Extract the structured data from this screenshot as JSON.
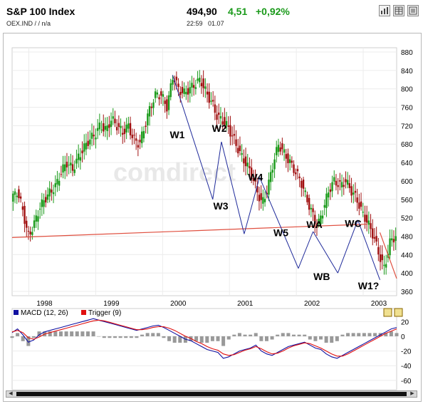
{
  "header": {
    "title": "S&P 100 Index",
    "subtitle": "OEX.IND  /    /  n/a",
    "price": "494,90",
    "change": "4,51",
    "change_pct": "+0,92%",
    "time": "22:59",
    "date": "01.07"
  },
  "toolbar": {
    "icons": [
      "bar-chart-icon",
      "table-icon",
      "news-icon",
      "close-icon"
    ]
  },
  "watermark": "comdirect",
  "colors": {
    "up": "#1a9a1a",
    "down": "#a01010",
    "wave_line": "#1f2a9a",
    "trend_line": "#e05040",
    "macd": "#1010a0",
    "trigger": "#e01010",
    "histogram": "#999999"
  },
  "chart_data": [
    {
      "type": "candlestick",
      "y_ticks": [
        "880",
        "840",
        "800",
        "760",
        "720",
        "680",
        "640",
        "600",
        "560",
        "520",
        "480",
        "440",
        "400",
        "360"
      ],
      "ylim": [
        360,
        880
      ],
      "x_ticks": [
        "1998",
        "1999",
        "2000",
        "2001",
        "2002",
        "2003"
      ],
      "xlim": [
        1997.75,
        2003.5
      ],
      "price_path": [
        [
          1997.75,
          555
        ],
        [
          1997.83,
          580
        ],
        [
          1997.92,
          540
        ],
        [
          1998.0,
          480
        ],
        [
          1998.08,
          500
        ],
        [
          1998.17,
          540
        ],
        [
          1998.25,
          560
        ],
        [
          1998.33,
          575
        ],
        [
          1998.42,
          590
        ],
        [
          1998.5,
          620
        ],
        [
          1998.58,
          640
        ],
        [
          1998.67,
          625
        ],
        [
          1998.75,
          650
        ],
        [
          1998.83,
          670
        ],
        [
          1998.92,
          690
        ],
        [
          1999.0,
          700
        ],
        [
          1999.08,
          720
        ],
        [
          1999.17,
          710
        ],
        [
          1999.25,
          735
        ],
        [
          1999.33,
          720
        ],
        [
          1999.42,
          705
        ],
        [
          1999.5,
          720
        ],
        [
          1999.58,
          690
        ],
        [
          1999.67,
          680
        ],
        [
          1999.75,
          720
        ],
        [
          1999.83,
          760
        ],
        [
          1999.92,
          790
        ],
        [
          2000.0,
          785
        ],
        [
          2000.08,
          760
        ],
        [
          2000.17,
          830
        ],
        [
          2000.25,
          800
        ],
        [
          2000.33,
          790
        ],
        [
          2000.42,
          800
        ],
        [
          2000.5,
          810
        ],
        [
          2000.58,
          820
        ],
        [
          2000.67,
          790
        ],
        [
          2000.75,
          770
        ],
        [
          2000.83,
          740
        ],
        [
          2000.92,
          730
        ],
        [
          2001.0,
          715
        ],
        [
          2001.08,
          690
        ],
        [
          2001.17,
          660
        ],
        [
          2001.25,
          640
        ],
        [
          2001.33,
          620
        ],
        [
          2001.42,
          580
        ],
        [
          2001.5,
          550
        ],
        [
          2001.58,
          580
        ],
        [
          2001.67,
          640
        ],
        [
          2001.75,
          680
        ],
        [
          2001.83,
          660
        ],
        [
          2001.92,
          640
        ],
        [
          2002.0,
          620
        ],
        [
          2002.08,
          600
        ],
        [
          2002.17,
          560
        ],
        [
          2002.25,
          530
        ],
        [
          2002.33,
          500
        ],
        [
          2002.42,
          540
        ],
        [
          2002.5,
          580
        ],
        [
          2002.58,
          600
        ],
        [
          2002.67,
          590
        ],
        [
          2002.75,
          600
        ],
        [
          2002.83,
          580
        ],
        [
          2002.92,
          560
        ],
        [
          2003.0,
          530
        ],
        [
          2003.08,
          510
        ],
        [
          2003.17,
          480
        ],
        [
          2003.25,
          440
        ],
        [
          2003.33,
          410
        ],
        [
          2003.42,
          470
        ],
        [
          2003.5,
          480
        ]
      ],
      "annotations": [
        {
          "text": "W1",
          "x": 2000.22,
          "y": 693
        },
        {
          "text": "W2",
          "x": 2000.85,
          "y": 707
        },
        {
          "text": "W3",
          "x": 2000.87,
          "y": 538
        },
        {
          "text": "W4",
          "x": 2001.39,
          "y": 601
        },
        {
          "text": "W5",
          "x": 2001.77,
          "y": 480
        },
        {
          "text": "WA",
          "x": 2002.27,
          "y": 498
        },
        {
          "text": "WB",
          "x": 2002.38,
          "y": 385
        },
        {
          "text": "WC",
          "x": 2002.85,
          "y": 500
        },
        {
          "text": "W1?",
          "x": 2003.08,
          "y": 365
        }
      ],
      "wave_lines": [
        [
          [
            2000.15,
            830
          ],
          [
            2000.75,
            560
          ]
        ],
        [
          [
            2000.75,
            560
          ],
          [
            2000.88,
            685
          ]
        ],
        [
          [
            2000.88,
            685
          ],
          [
            2001.22,
            485
          ]
        ],
        [
          [
            2001.22,
            485
          ],
          [
            2001.45,
            608
          ]
        ],
        [
          [
            2001.45,
            608
          ],
          [
            2002.03,
            410
          ]
        ],
        [
          [
            2002.03,
            410
          ],
          [
            2002.25,
            490
          ]
        ],
        [
          [
            2002.25,
            490
          ],
          [
            2002.62,
            400
          ]
        ],
        [
          [
            2002.62,
            400
          ],
          [
            2002.92,
            515
          ]
        ],
        [
          [
            2002.92,
            515
          ],
          [
            2003.25,
            385
          ]
        ]
      ],
      "trend_line": [
        [
          1997.75,
          477
        ],
        [
          2003.05,
          506
        ]
      ],
      "projection_line": [
        [
          2003.25,
          488
        ],
        [
          2003.5,
          388
        ]
      ]
    },
    {
      "type": "line",
      "title": "",
      "legend": [
        "MACD (12, 26)",
        "Trigger (9)"
      ],
      "y_ticks": [
        "20",
        "0",
        "-20",
        "-40",
        "-60"
      ],
      "ylim": [
        -65,
        30
      ],
      "series": [
        {
          "name": "MACD (12, 26)",
          "values": [
            5,
            10,
            2,
            -8,
            -5,
            2,
            6,
            8,
            10,
            12,
            14,
            16,
            18,
            20,
            22,
            24,
            22,
            20,
            18,
            16,
            14,
            12,
            10,
            8,
            10,
            12,
            14,
            15,
            12,
            8,
            4,
            0,
            -4,
            -6,
            -10,
            -14,
            -18,
            -20,
            -22,
            -30,
            -28,
            -24,
            -20,
            -18,
            -16,
            -12,
            -20,
            -24,
            -26,
            -22,
            -18,
            -14,
            -12,
            -10,
            -8,
            -12,
            -16,
            -18,
            -24,
            -28,
            -30,
            -26,
            -22,
            -18,
            -14,
            -10,
            -6,
            -2,
            2,
            6,
            10,
            12
          ]
        },
        {
          "name": "Trigger (9)",
          "values": [
            6,
            8,
            5,
            -2,
            -4,
            -1,
            3,
            5,
            7,
            9,
            11,
            13,
            15,
            17,
            19,
            21,
            22,
            21,
            19,
            17,
            15,
            13,
            11,
            9,
            9,
            10,
            12,
            13,
            13,
            11,
            8,
            4,
            0,
            -3,
            -7,
            -10,
            -14,
            -17,
            -19,
            -24,
            -26,
            -25,
            -22,
            -19,
            -17,
            -14,
            -17,
            -21,
            -24,
            -23,
            -20,
            -16,
            -13,
            -11,
            -9,
            -10,
            -13,
            -16,
            -20,
            -24,
            -27,
            -27,
            -24,
            -20,
            -16,
            -12,
            -8,
            -4,
            0,
            4,
            7,
            10
          ]
        }
      ]
    }
  ]
}
